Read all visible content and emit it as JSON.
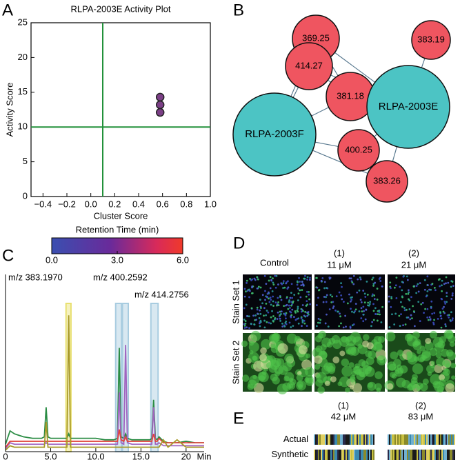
{
  "panel_letters": [
    "A",
    "B",
    "C",
    "D",
    "E"
  ],
  "chart_data": [
    {
      "type": "scatter",
      "title": "RLPA-2003E Activity Plot",
      "x_label": "Cluster Score",
      "y_label": "Activity Score",
      "xlim": [
        -0.5,
        1.0
      ],
      "xticks": [
        {
          "value": -0.4,
          "label": "−0.4"
        },
        {
          "value": -0.2,
          "label": "−0.2"
        },
        {
          "value": 0,
          "label": "0.0"
        },
        0.2,
        0.4,
        0.6,
        0.8,
        {
          "value": 1,
          "label": "1.0"
        }
      ],
      "ylim": [
        0,
        25
      ],
      "yticks": [
        0,
        5,
        10,
        15,
        20,
        25
      ],
      "xline": 0.1,
      "yline": 10,
      "line_color": "#22913a",
      "x": [
        0.58,
        0.58,
        0.58
      ],
      "values": [
        14.3,
        13.2,
        12.1
      ],
      "color": "#7b3f86",
      "colorbar": {
        "title": "Retention Time (min)",
        "lim": [
          0,
          6
        ],
        "ticks": [
          {
            "value": 0,
            "label": "0.0"
          },
          {
            "value": 3,
            "label": "3.0"
          },
          {
            "value": 6,
            "label": "6.0"
          }
        ]
      }
    },
    {
      "type": "line",
      "x_label": "Min",
      "xlim": [
        0,
        22
      ],
      "xticks": [
        0,
        {
          "value": 5,
          "label": "5.0"
        },
        {
          "value": 10,
          "label": "10.0"
        },
        {
          "value": 15,
          "label": "15.0"
        },
        20
      ],
      "ylim": [
        0,
        100
      ],
      "x": [
        0,
        0.5,
        1,
        1.5,
        2,
        3,
        4,
        4.3,
        4.5,
        4.7,
        5,
        6,
        6.8,
        7,
        7.2,
        8,
        9,
        10,
        11,
        12,
        12.4,
        12.6,
        12.8,
        13.1,
        13.3,
        13.5,
        14,
        15,
        16,
        16.2,
        16.4,
        16.6,
        16.8,
        17,
        17.5,
        18,
        19,
        20,
        21,
        22
      ],
      "series": [
        {
          "color": "#2a8c44",
          "values": [
            5,
            14,
            12,
            11,
            10,
            9,
            9,
            10,
            30,
            10,
            9,
            9,
            9,
            12,
            9,
            9,
            9,
            9,
            8,
            8,
            9,
            70,
            10,
            9,
            12,
            9,
            8,
            8,
            8,
            9,
            35,
            9,
            8,
            10,
            7,
            6,
            6,
            7,
            6,
            6
          ]
        },
        {
          "color": "#a064c0",
          "values": [
            2,
            6,
            5,
            5,
            5,
            5,
            5,
            5,
            6,
            5,
            5,
            5,
            5,
            5,
            5,
            5,
            5,
            5,
            5,
            5,
            5,
            40,
            6,
            5,
            72,
            6,
            5,
            5,
            5,
            5,
            30,
            5,
            5,
            6,
            4,
            4,
            4,
            4,
            4,
            4
          ]
        },
        {
          "color": "#e0443c",
          "values": [
            3,
            7,
            7,
            7,
            7,
            7,
            7,
            7,
            7,
            7,
            7,
            7,
            7,
            7,
            7,
            7,
            7,
            7,
            7,
            7,
            7,
            15,
            8,
            7,
            10,
            7,
            7,
            7,
            7,
            7,
            12,
            7,
            7,
            9,
            6,
            6,
            6,
            6,
            6,
            6
          ]
        },
        {
          "color": "#a89a2a",
          "values": [
            1,
            4,
            3,
            3,
            3,
            3,
            3,
            3,
            20,
            3,
            3,
            3,
            3,
            92,
            3,
            3,
            3,
            3,
            3,
            3,
            3,
            3,
            3,
            3,
            3,
            3,
            3,
            3,
            3,
            3,
            3,
            3,
            3,
            3,
            8,
            3,
            8,
            3,
            3,
            3
          ]
        }
      ],
      "highlights": [
        {
          "x": [
            6.7,
            7.25
          ],
          "color": "#e8e070"
        },
        {
          "x": [
            12.2,
            12.85
          ],
          "color": "#a8cce0"
        },
        {
          "x": [
            12.95,
            13.6
          ],
          "color": "#a8cce0"
        },
        {
          "x": [
            16.1,
            16.9
          ],
          "color": "#a8cce0"
        }
      ],
      "annotations": [
        "m/z 383.1970",
        "m/z 400.2592",
        "m/z 414.2756"
      ]
    }
  ],
  "network": {
    "nodes": [
      {
        "label": "369.25",
        "color": "#ef5560"
      },
      {
        "label": "383.19",
        "color": "#ef5560"
      },
      {
        "label": "414.27",
        "color": "#ef5560"
      },
      {
        "label": "381.18",
        "color": "#ef5560"
      },
      {
        "label": "RLPA-2003E",
        "color": "#4cc4c4"
      },
      {
        "label": "RLPA-2003F",
        "color": "#4cc4c4"
      },
      {
        "label": "400.25",
        "color": "#ef5560"
      },
      {
        "label": "383.26",
        "color": "#ef5560"
      }
    ]
  },
  "images": {
    "columns": [
      {
        "label": "Control"
      },
      {
        "label": "(1)",
        "conc": "11 μM"
      },
      {
        "label": "(2)",
        "conc": "21 μM"
      }
    ],
    "rows": [
      "Stain Set 1",
      "Stain Set 2"
    ]
  },
  "barcodes": {
    "columns": [
      {
        "label": "(1)",
        "conc": "42 μM"
      },
      {
        "label": "(2)",
        "conc": "83 μM"
      }
    ],
    "rows": [
      "Actual",
      "Synthetic"
    ]
  }
}
